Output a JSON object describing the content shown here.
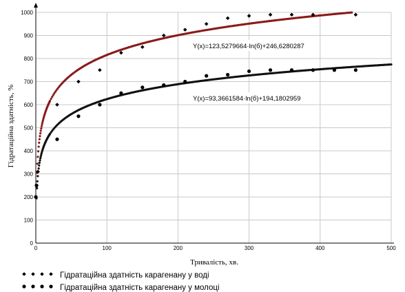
{
  "chart_data": {
    "type": "scatter",
    "xlabel": "Тривалість, хв.",
    "ylabel": "Гідратаційна здатність, %",
    "xlim": [
      0,
      500
    ],
    "ylim": [
      0,
      1000
    ],
    "xticks": [
      0,
      100,
      200,
      300,
      400,
      500
    ],
    "yticks": [
      0,
      100,
      200,
      300,
      400,
      500,
      600,
      700,
      800,
      900,
      1000
    ],
    "grid": true,
    "legend_position": "bottom-left",
    "series": [
      {
        "name": "Гідратаційна здатність карагенану у воді",
        "marker": "diamond",
        "color": "#000000",
        "trend_color": "#8b1a1a",
        "x": [
          0,
          1,
          3,
          30,
          60,
          90,
          120,
          150,
          180,
          210,
          240,
          270,
          300,
          330,
          360,
          390,
          450
        ],
        "y": [
          200,
          250,
          310,
          600,
          700,
          750,
          825,
          850,
          900,
          925,
          950,
          975,
          985,
          990,
          990,
          990,
          990
        ],
        "trend": {
          "a": 123.5279664,
          "b": 246.6280287,
          "x_max": 445
        },
        "equation": "Y(x)=123,5279664·ln(б)+246,6280287"
      },
      {
        "name": "Гідратаційна здатність карагенану у молоці",
        "marker": "circle",
        "color": "#000000",
        "trend_color": "#111111",
        "x": [
          0,
          1,
          30,
          60,
          90,
          120,
          150,
          180,
          210,
          240,
          270,
          300,
          330,
          360,
          390,
          420,
          450
        ],
        "y": [
          200,
          250,
          450,
          550,
          600,
          650,
          675,
          685,
          700,
          725,
          730,
          745,
          750,
          750,
          750,
          750,
          750
        ],
        "trend": {
          "a": 93.3661584,
          "b": 194.1802959,
          "x_max": 500
        },
        "equation": "Y(x)=93,3661584·ln(б)+194,1802959"
      }
    ]
  }
}
